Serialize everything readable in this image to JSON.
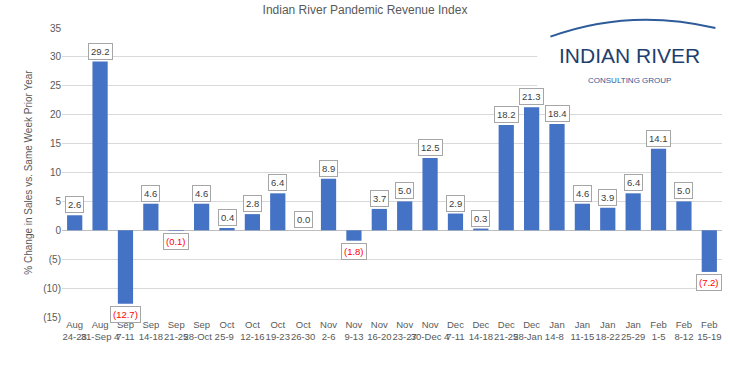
{
  "chart_data": {
    "type": "bar",
    "title": "Indian River Pandemic Revenue Index",
    "y_label": "% Change in Sales vs. Same Week Prior Year",
    "annotations": [
      "INDIAN RIVER",
      "CONSULTING GROUP"
    ],
    "categories": [
      "Aug 24-28",
      "Aug 31-Sep 4",
      "Sep 7-11",
      "Sep 14-18",
      "Sep 21-25",
      "Sep 28-Oct 2",
      "Oct 5-9",
      "Oct 12-16",
      "Oct 19-23",
      "Oct 26-30",
      "Nov 2-6",
      "Nov 9-13",
      "Nov 16-20",
      "Nov 23-27",
      "Nov 30-Dec 4",
      "Dec 7-11",
      "Dec 14-18",
      "Dec 21-25",
      "Dec 28-Jan 1",
      "Jan 4-8",
      "Jan 11-15",
      "Jan 18-22",
      "Jan 25-29",
      "Feb 1-5",
      "Feb 8-12",
      "Feb 15-19"
    ],
    "values": [
      2.6,
      29.2,
      -12.7,
      4.6,
      -0.1,
      4.6,
      0.4,
      2.8,
      6.4,
      0.0,
      8.9,
      -1.8,
      3.7,
      5.0,
      12.5,
      2.9,
      0.3,
      18.2,
      21.3,
      18.4,
      4.6,
      3.9,
      6.4,
      14.1,
      5.0,
      -7.2
    ],
    "value_labels": [
      "2.6",
      "29.2",
      "(12.7)",
      "4.6",
      "(0.1)",
      "4.6",
      "0.4",
      "2.8",
      "6.4",
      "0.0",
      "8.9",
      "(1.8)",
      "3.7",
      "5.0",
      "12.5",
      "2.9",
      "0.3",
      "18.2",
      "21.3",
      "18.4",
      "4.6",
      "3.9",
      "6.4",
      "14.1",
      "5.0",
      "(7.2)"
    ],
    "color": "#4472c4",
    "ylim": [
      -15,
      35
    ],
    "yticks": [
      {
        "value": -15,
        "label": "(15)"
      },
      {
        "value": -10,
        "label": "(10)"
      },
      {
        "value": -5,
        "label": "(5)"
      },
      0,
      5,
      10,
      15,
      20,
      25,
      30,
      35
    ],
    "grid": true,
    "data_labels": true
  }
}
